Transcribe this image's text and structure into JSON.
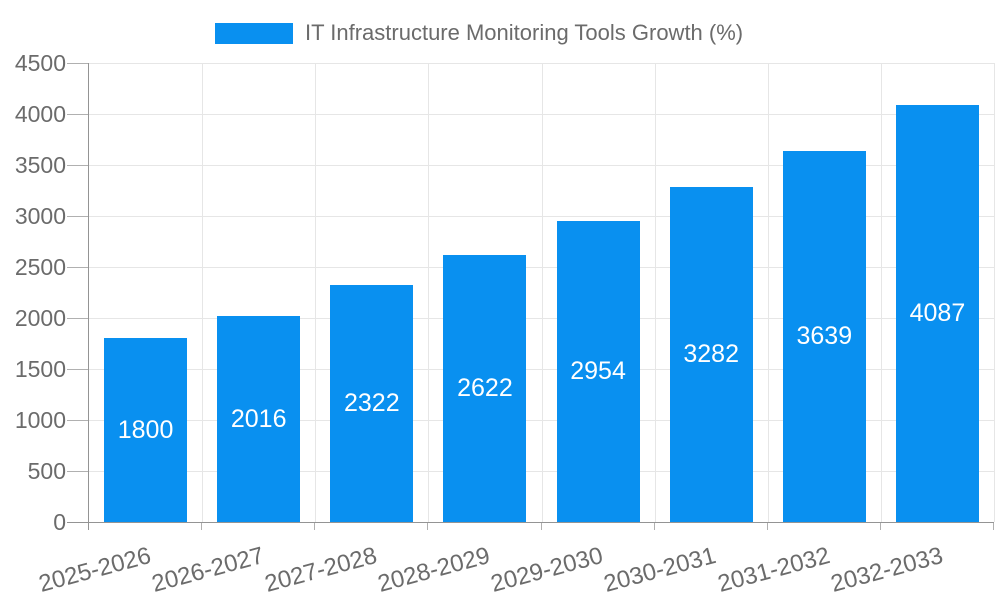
{
  "chart_data": {
    "type": "bar",
    "title": "",
    "categories": [
      "2025-2026",
      "2026-2027",
      "2027-2028",
      "2028-2029",
      "2029-2030",
      "2030-2031",
      "2031-2032",
      "2032-2033"
    ],
    "series": [
      {
        "name": "IT Infrastructure Monitoring Tools Growth (%)",
        "values": [
          1800,
          2016,
          2322,
          2622,
          2954,
          3282,
          3639,
          4087
        ]
      }
    ],
    "xlabel": "",
    "ylabel": "",
    "ylim": [
      0,
      4500
    ],
    "ytick_step": 500,
    "yticks": [
      0,
      500,
      1000,
      1500,
      2000,
      2500,
      3000,
      3500,
      4000,
      4500
    ],
    "grid": true,
    "legend_position": "top-center",
    "value_labels": "inside-center",
    "x_label_rotation_deg": -15,
    "colors": {
      "bar": "#0990f0",
      "bar_label": "#ffffff",
      "grid": "#e6e6e6",
      "axis": "#949494",
      "tick": "#b0b0b0",
      "text": "#6b6b6b",
      "background": "#ffffff"
    }
  }
}
